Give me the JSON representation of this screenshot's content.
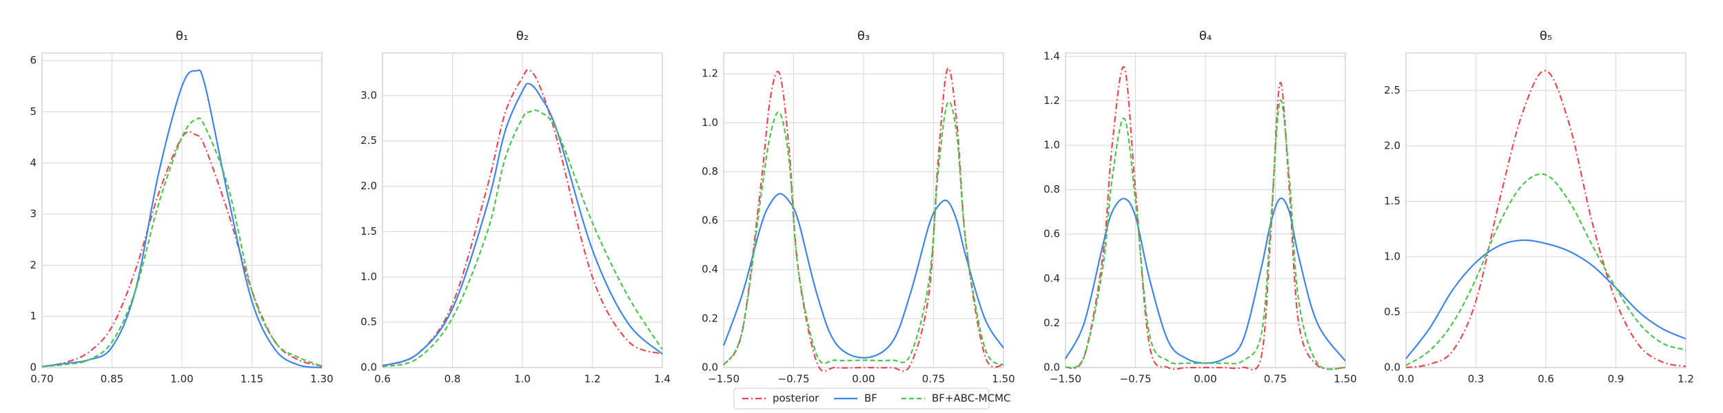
{
  "chart_data": [
    {
      "type": "line",
      "title": "θ₁",
      "legend": "lower center",
      "x": [
        0.7,
        0.75,
        0.8,
        0.85,
        0.9,
        0.95,
        1.0,
        1.03,
        1.05,
        1.1,
        1.15,
        1.2,
        1.25,
        1.3
      ],
      "series": [
        {
          "name": "posterior",
          "color": "#e8474f",
          "style": "dashdot",
          "values": [
            0.02,
            0.1,
            0.3,
            0.8,
            1.9,
            3.4,
            4.5,
            4.55,
            4.3,
            3.0,
            1.5,
            0.5,
            0.15,
            0.03
          ]
        },
        {
          "name": "BF",
          "color": "#3d85e8",
          "style": "solid",
          "values": [
            0.02,
            0.08,
            0.15,
            0.4,
            1.5,
            3.8,
            5.5,
            5.8,
            5.5,
            3.3,
            1.3,
            0.35,
            0.05,
            0.0
          ]
        },
        {
          "name": "BF+ABC-MCMC",
          "color": "#4bc44b",
          "style": "dashed",
          "values": [
            0.02,
            0.06,
            0.15,
            0.5,
            1.5,
            3.2,
            4.5,
            4.85,
            4.7,
            3.5,
            1.5,
            0.5,
            0.2,
            0.03
          ]
        }
      ],
      "xlim": [
        0.7,
        1.3
      ],
      "ylim": [
        0,
        6.15
      ],
      "xticks": [
        {
          "value": 0.7,
          "label": "0.70"
        },
        {
          "value": 0.85,
          "label": "0.85"
        },
        {
          "value": 1.0,
          "label": "1.00"
        },
        {
          "value": 1.15,
          "label": "1.15"
        },
        {
          "value": 1.3,
          "label": "1.30"
        }
      ],
      "yticks": [
        0,
        1,
        2,
        3,
        4,
        5,
        6
      ],
      "grid": true
    },
    {
      "type": "line",
      "title": "θ₂",
      "x": [
        0.6,
        0.7,
        0.8,
        0.9,
        0.95,
        1.0,
        1.02,
        1.05,
        1.1,
        1.2,
        1.3,
        1.4
      ],
      "series": [
        {
          "color": "#e8474f",
          "style": "dashdot",
          "values": [
            0.02,
            0.15,
            0.7,
            2.0,
            2.8,
            3.2,
            3.28,
            3.1,
            2.5,
            1.0,
            0.3,
            0.15
          ]
        },
        {
          "color": "#3d85e8",
          "style": "solid",
          "values": [
            0.02,
            0.15,
            0.65,
            1.8,
            2.6,
            3.05,
            3.13,
            3.0,
            2.6,
            1.3,
            0.5,
            0.15
          ]
        },
        {
          "color": "#4bc44b",
          "style": "dashed",
          "values": [
            0.01,
            0.1,
            0.55,
            1.5,
            2.3,
            2.75,
            2.82,
            2.82,
            2.6,
            1.6,
            0.8,
            0.2
          ]
        }
      ],
      "xlim": [
        0.6,
        1.4
      ],
      "ylim": [
        0,
        3.47
      ],
      "xticks": [
        0.6,
        0.8,
        {
          "value": 1.0,
          "label": "1.0"
        },
        1.2,
        1.4
      ],
      "yticks": [
        {
          "value": 0,
          "label": "0.0"
        },
        0.5,
        {
          "value": 1,
          "label": "1.0"
        },
        1.5,
        {
          "value": 2,
          "label": "2.0"
        },
        2.5,
        {
          "value": 3,
          "label": "3.0"
        }
      ],
      "grid": true
    },
    {
      "type": "line",
      "title": "θ₃",
      "x": [
        -1.5,
        -1.3,
        -1.1,
        -1.0,
        -0.9,
        -0.8,
        -0.7,
        -0.5,
        -0.3,
        0,
        0.3,
        0.5,
        0.7,
        0.8,
        0.9,
        1.0,
        1.1,
        1.3,
        1.5
      ],
      "series": [
        {
          "color": "#e8474f",
          "style": "dashdot",
          "values": [
            0.01,
            0.15,
            0.75,
            1.1,
            1.2,
            0.9,
            0.4,
            0.02,
            0,
            0,
            0,
            0.01,
            0.3,
            0.85,
            1.22,
            1.0,
            0.5,
            0.05,
            0.01
          ]
        },
        {
          "color": "#3d85e8",
          "style": "solid",
          "values": [
            0.09,
            0.3,
            0.58,
            0.67,
            0.71,
            0.68,
            0.6,
            0.3,
            0.1,
            0.04,
            0.1,
            0.3,
            0.58,
            0.66,
            0.68,
            0.6,
            0.45,
            0.2,
            0.08
          ]
        },
        {
          "color": "#4bc44b",
          "style": "dashed",
          "values": [
            0.01,
            0.15,
            0.7,
            0.95,
            1.04,
            0.85,
            0.4,
            0.05,
            0.03,
            0.03,
            0.03,
            0.05,
            0.35,
            0.8,
            1.08,
            0.95,
            0.5,
            0.08,
            0.01
          ]
        }
      ],
      "xlim": [
        -1.5,
        1.5
      ],
      "ylim": [
        0,
        1.285
      ],
      "xticks": [
        {
          "value": -1.5,
          "label": "−1.50"
        },
        {
          "value": -0.75,
          "label": "−0.75"
        },
        {
          "value": 0,
          "label": "0.00"
        },
        {
          "value": 0.75,
          "label": "0.75"
        },
        {
          "value": 1.5,
          "label": "1.50"
        }
      ],
      "yticks": [
        {
          "value": 0,
          "label": "0.0"
        },
        0.2,
        0.4,
        0.6,
        0.8,
        {
          "value": 1,
          "label": "1.0"
        },
        1.2
      ],
      "grid": true
    },
    {
      "type": "line",
      "title": "θ₄",
      "x": [
        -1.5,
        -1.3,
        -1.1,
        -1.0,
        -0.87,
        -0.75,
        -0.6,
        -0.4,
        -0.2,
        0,
        0.2,
        0.4,
        0.6,
        0.7,
        0.8,
        0.9,
        1.0,
        1.2,
        1.5
      ],
      "series": [
        {
          "color": "#e8474f",
          "style": "dashdot",
          "values": [
            0,
            0.05,
            0.5,
            1.0,
            1.35,
            0.8,
            0.1,
            0,
            0,
            0,
            0,
            0,
            0.05,
            0.6,
            1.28,
            0.8,
            0.2,
            0.01,
            0
          ]
        },
        {
          "color": "#3d85e8",
          "style": "solid",
          "values": [
            0.04,
            0.2,
            0.55,
            0.7,
            0.76,
            0.68,
            0.4,
            0.12,
            0.04,
            0.02,
            0.04,
            0.12,
            0.45,
            0.65,
            0.76,
            0.7,
            0.5,
            0.2,
            0.03
          ]
        },
        {
          "color": "#4bc44b",
          "style": "dashed",
          "values": [
            0,
            0.05,
            0.45,
            0.85,
            1.12,
            0.75,
            0.15,
            0.03,
            0.02,
            0.02,
            0.02,
            0.03,
            0.15,
            0.65,
            1.2,
            0.85,
            0.3,
            0.02,
            0
          ]
        }
      ],
      "xlim": [
        -1.5,
        1.5
      ],
      "ylim": [
        0,
        1.415
      ],
      "xticks": [
        {
          "value": -1.5,
          "label": "−1.50"
        },
        {
          "value": -0.75,
          "label": "−0.75"
        },
        {
          "value": 0,
          "label": "0.00"
        },
        {
          "value": 0.75,
          "label": "0.75"
        },
        {
          "value": 1.5,
          "label": "1.50"
        }
      ],
      "yticks": [
        {
          "value": 0,
          "label": "0.0"
        },
        0.2,
        0.4,
        0.6,
        0.8,
        {
          "value": 1,
          "label": "1.0"
        },
        1.2,
        1.4
      ],
      "grid": true
    },
    {
      "type": "line",
      "title": "θ₅",
      "x": [
        0,
        0.1,
        0.2,
        0.3,
        0.4,
        0.5,
        0.6,
        0.7,
        0.8,
        0.9,
        1.0,
        1.1,
        1.2
      ],
      "series": [
        {
          "color": "#e8474f",
          "style": "dashdot",
          "values": [
            0,
            0.03,
            0.15,
            0.6,
            1.5,
            2.3,
            2.68,
            2.2,
            1.3,
            0.6,
            0.2,
            0.05,
            0.01
          ]
        },
        {
          "color": "#3d85e8",
          "style": "solid",
          "values": [
            0.08,
            0.35,
            0.7,
            0.95,
            1.1,
            1.15,
            1.12,
            1.05,
            0.92,
            0.72,
            0.5,
            0.35,
            0.26
          ]
        },
        {
          "color": "#4bc44b",
          "style": "dashed",
          "values": [
            0.02,
            0.15,
            0.4,
            0.8,
            1.3,
            1.65,
            1.74,
            1.5,
            1.1,
            0.72,
            0.4,
            0.22,
            0.16
          ]
        }
      ],
      "xlim": [
        0,
        1.2
      ],
      "ylim": [
        0,
        2.84
      ],
      "xticks": [
        {
          "value": 0,
          "label": "0.0"
        },
        0.3,
        0.6,
        0.9,
        1.2
      ],
      "yticks": [
        {
          "value": 0,
          "label": "0.0"
        },
        0.5,
        {
          "value": 1,
          "label": "1.0"
        },
        1.5,
        {
          "value": 2,
          "label": "2.0"
        },
        2.5
      ],
      "grid": true
    }
  ]
}
